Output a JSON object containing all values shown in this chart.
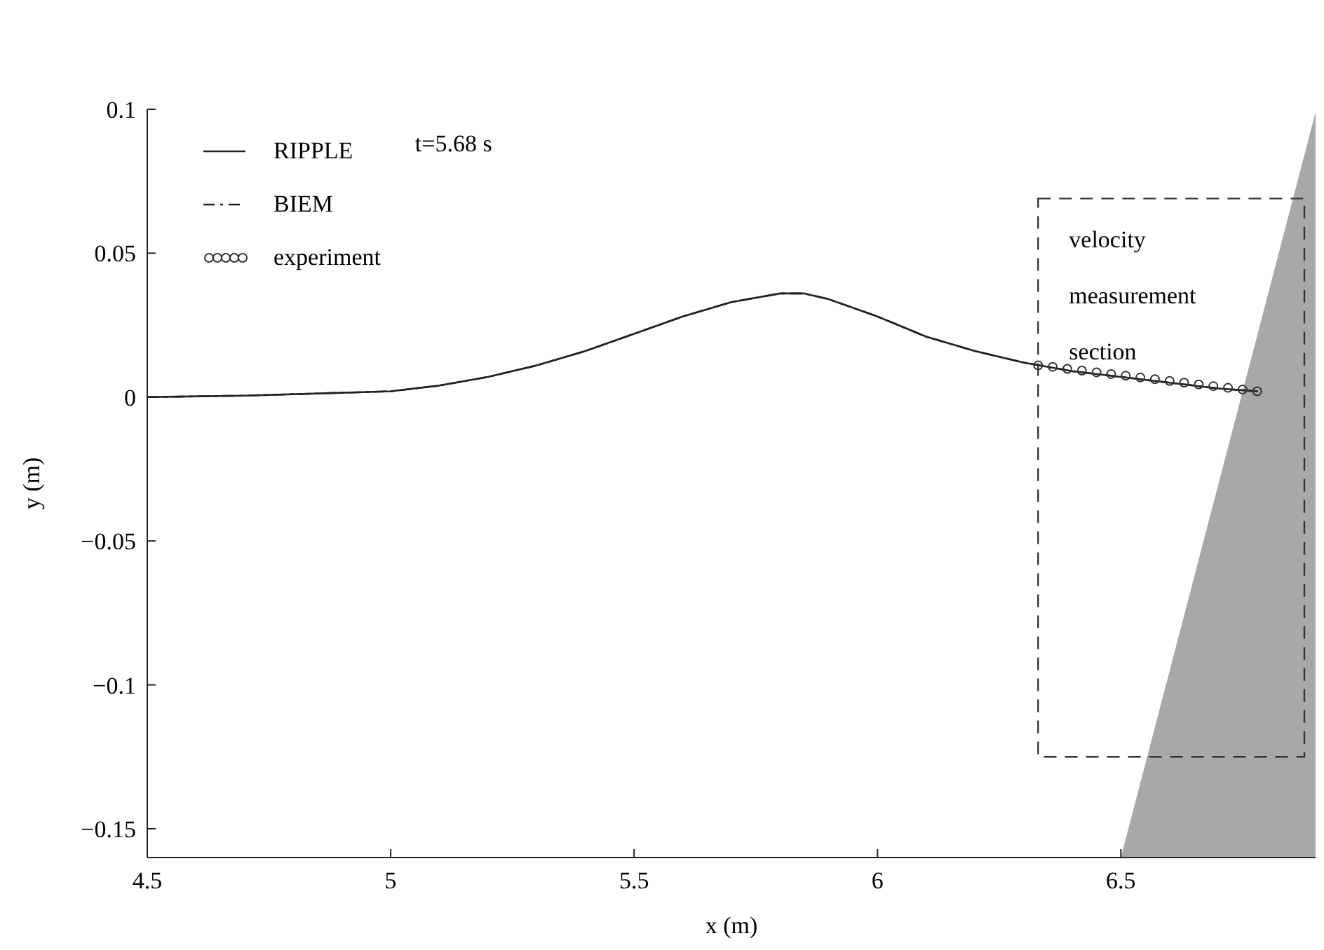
{
  "chart_data": {
    "type": "line",
    "xlabel": "x (m)",
    "ylabel": "y (m)",
    "xlim": [
      4.5,
      6.9
    ],
    "xticks": [
      4.5,
      5,
      5.5,
      6,
      6.5
    ],
    "ylim": [
      -0.16,
      0.1
    ],
    "yticks": [
      {
        "value": -0.15,
        "label": "−0.15"
      },
      {
        "value": -0.1,
        "label": "−0.1"
      },
      {
        "value": -0.05,
        "label": "−0.05"
      },
      0,
      0.05,
      0.1
    ],
    "legend": "top left",
    "grid": false,
    "annotations": [
      "t=5.68 s",
      "velocity measurement section"
    ],
    "series": [
      {
        "name": "RIPPLE",
        "color": "#222222",
        "line_style": "solid",
        "x": [
          4.5,
          4.7,
          4.9,
          5.0,
          5.1,
          5.2,
          5.3,
          5.4,
          5.5,
          5.6,
          5.7,
          5.8,
          5.85,
          5.9,
          6.0,
          6.1,
          6.2,
          6.3,
          6.4,
          6.5,
          6.6,
          6.7,
          6.78
        ],
        "values": [
          0,
          0.0005,
          0.0015,
          0.002,
          0.004,
          0.007,
          0.011,
          0.016,
          0.022,
          0.028,
          0.033,
          0.036,
          0.036,
          0.034,
          0.028,
          0.021,
          0.016,
          0.012,
          0.009,
          0.007,
          0.005,
          0.003,
          0.002
        ]
      },
      {
        "name": "BIEM",
        "color": "#222222",
        "line_style": "dashed",
        "x": [
          4.5,
          4.7,
          4.9,
          5.0,
          5.1,
          5.2,
          5.3,
          5.4,
          5.5,
          5.6,
          5.7,
          5.8,
          5.85,
          5.9,
          6.0,
          6.1,
          6.2,
          6.3,
          6.4,
          6.5,
          6.6,
          6.7,
          6.78
        ],
        "values": [
          0,
          0.0005,
          0.0015,
          0.002,
          0.004,
          0.007,
          0.011,
          0.016,
          0.022,
          0.028,
          0.033,
          0.036,
          0.036,
          0.034,
          0.028,
          0.021,
          0.016,
          0.012,
          0.009,
          0.007,
          0.005,
          0.003,
          0.002
        ]
      },
      {
        "name": "experiment",
        "type": "scatter",
        "color": "#333333",
        "marker": "circle",
        "x": [
          6.33,
          6.36,
          6.39,
          6.42,
          6.45,
          6.48,
          6.51,
          6.54,
          6.57,
          6.6,
          6.63,
          6.66,
          6.69,
          6.72,
          6.75,
          6.78
        ],
        "values": [
          0.011,
          0.0105,
          0.0098,
          0.0092,
          0.0086,
          0.008,
          0.0074,
          0.0068,
          0.0062,
          0.0056,
          0.005,
          0.0044,
          0.0038,
          0.0032,
          0.0026,
          0.002
        ]
      }
    ]
  }
}
